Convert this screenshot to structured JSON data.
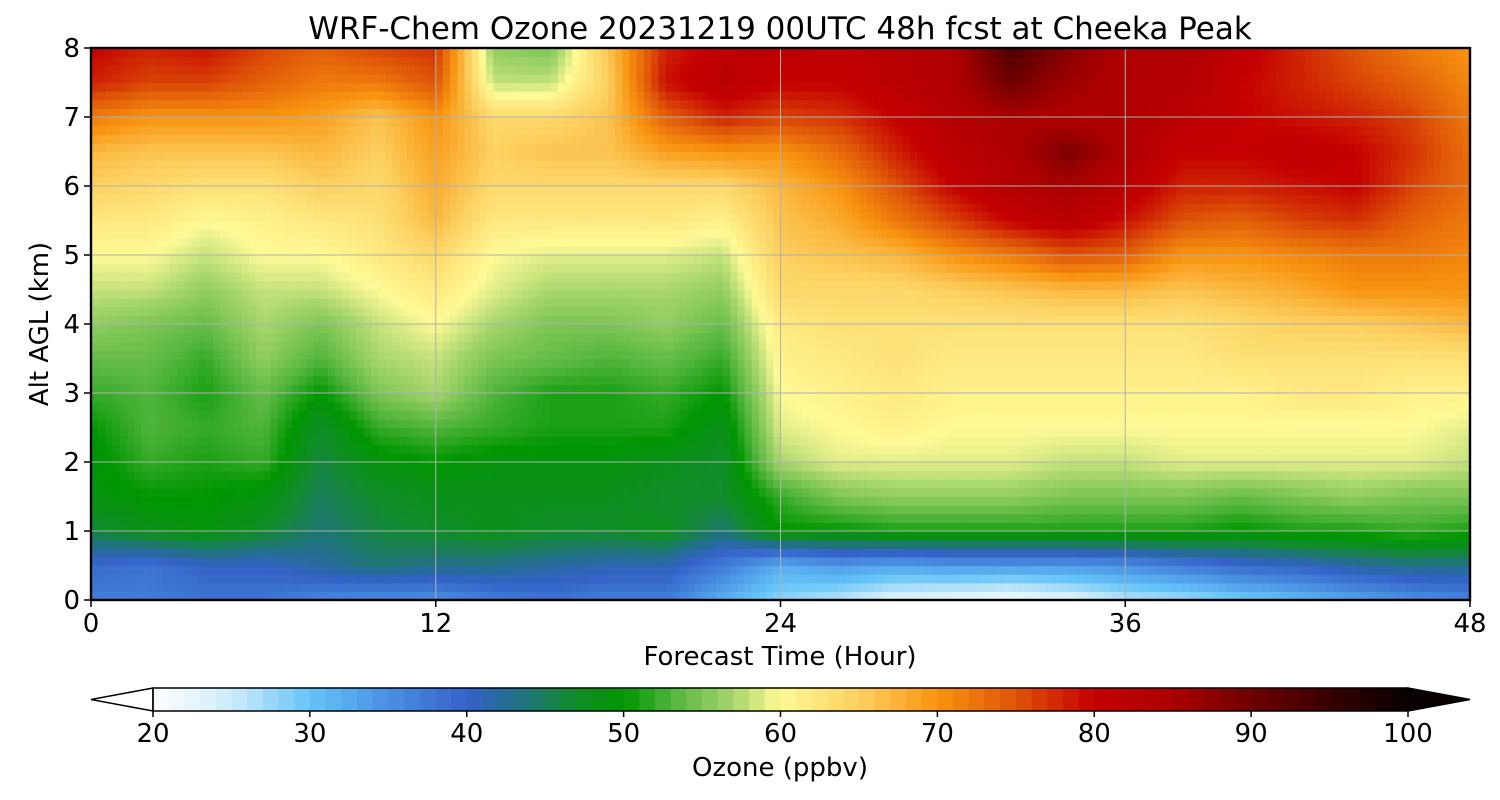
{
  "chart_data": {
    "type": "heatmap",
    "title": "WRF-Chem Ozone  20231219 00UTC 48h fcst at Cheeka Peak",
    "xlabel": "Forecast Time (Hour)",
    "ylabel": "Alt AGL (km)",
    "xlim": [
      0,
      48
    ],
    "ylim": [
      0,
      8
    ],
    "xticks": [
      "0",
      "12",
      "24",
      "36",
      "48"
    ],
    "yticks": [
      "0",
      "1",
      "2",
      "3",
      "4",
      "5",
      "6",
      "7",
      "8"
    ],
    "grid": true,
    "colorbar": {
      "label": "Ozone  (ppbv)",
      "range": [
        20,
        100
      ],
      "ticks": [
        "20",
        "30",
        "40",
        "50",
        "60",
        "70",
        "80",
        "90",
        "100"
      ],
      "extend": "both"
    },
    "x_hours": [
      0,
      2,
      4,
      6,
      8,
      10,
      12,
      14,
      16,
      18,
      20,
      22,
      24,
      26,
      28,
      30,
      32,
      34,
      36,
      38,
      40,
      42,
      44,
      46,
      48
    ],
    "z_km": [
      0,
      0.5,
      1,
      1.5,
      2,
      2.5,
      3,
      3.5,
      4,
      4.5,
      5,
      5.5,
      6,
      6.5,
      7,
      7.5,
      8
    ],
    "values_ppbv": [
      [
        37,
        37,
        38,
        38,
        36,
        35,
        35,
        37,
        38,
        37,
        37,
        32,
        28,
        26,
        23,
        22,
        21,
        23,
        26,
        27,
        29,
        31,
        33,
        35,
        36
      ],
      [
        39,
        38,
        40,
        40,
        42,
        44,
        43,
        43,
        42,
        41,
        41,
        37,
        32,
        34,
        33,
        34,
        34,
        34,
        35,
        37,
        39,
        40,
        42,
        43,
        43
      ],
      [
        46,
        48,
        49,
        47,
        44,
        46,
        47,
        48,
        47,
        47,
        48,
        44,
        50,
        50,
        51,
        51,
        51,
        51,
        51,
        51,
        50,
        51,
        51,
        52,
        51
      ],
      [
        49,
        50,
        50,
        49,
        45,
        47,
        48,
        48,
        48,
        48,
        47,
        47,
        52,
        55,
        56,
        56,
        56,
        55,
        55,
        55,
        54,
        55,
        56,
        55,
        55
      ],
      [
        49,
        52,
        51,
        52,
        46,
        49,
        50,
        49,
        49,
        49,
        48,
        47,
        57,
        59,
        59,
        59,
        59,
        58,
        58,
        59,
        59,
        59,
        59,
        59,
        58
      ],
      [
        50,
        53,
        52,
        53,
        47,
        52,
        53,
        52,
        51,
        51,
        51,
        48,
        59,
        60,
        61,
        60,
        60,
        60,
        60,
        60,
        60,
        60,
        60,
        60,
        59
      ],
      [
        52,
        53,
        51,
        54,
        50,
        55,
        57,
        53,
        51,
        51,
        52,
        50,
        60,
        61,
        62,
        61,
        61,
        61,
        61,
        61,
        61,
        62,
        62,
        61,
        61
      ],
      [
        54,
        54,
        52,
        56,
        53,
        57,
        58,
        55,
        54,
        53,
        54,
        52,
        61,
        62,
        63,
        62,
        62,
        62,
        62,
        62,
        63,
        63,
        63,
        63,
        63
      ],
      [
        56,
        55,
        54,
        57,
        55,
        58,
        60,
        57,
        55,
        55,
        56,
        54,
        62,
        63,
        63,
        63,
        63,
        63,
        63,
        63,
        64,
        65,
        65,
        66,
        67
      ],
      [
        58,
        58,
        56,
        58,
        58,
        60,
        62,
        59,
        57,
        57,
        57,
        56,
        64,
        64,
        64,
        65,
        66,
        67,
        67,
        66,
        67,
        68,
        70,
        70,
        70
      ],
      [
        60,
        60,
        58,
        60,
        60,
        62,
        64,
        60,
        59,
        59,
        59,
        58,
        65,
        66,
        67,
        70,
        72,
        75,
        74,
        70,
        70,
        71,
        72,
        72,
        71
      ],
      [
        62,
        62,
        60,
        61,
        62,
        63,
        67,
        62,
        62,
        62,
        62,
        61,
        66,
        68,
        72,
        76,
        80,
        82,
        79,
        75,
        74,
        76,
        77,
        74,
        72
      ],
      [
        65,
        64,
        63,
        63,
        65,
        64,
        68,
        64,
        64,
        64,
        64,
        64,
        67,
        70,
        75,
        80,
        83,
        85,
        82,
        78,
        78,
        79,
        80,
        76,
        73
      ],
      [
        67,
        66,
        66,
        66,
        67,
        65,
        69,
        65,
        66,
        66,
        69,
        70,
        70,
        73,
        78,
        82,
        84,
        89,
        84,
        80,
        80,
        81,
        80,
        77,
        73
      ],
      [
        72,
        70,
        70,
        70,
        69,
        66,
        70,
        64,
        64,
        66,
        74,
        78,
        76,
        77,
        80,
        83,
        85,
        84,
        84,
        82,
        80,
        79,
        78,
        76,
        72
      ],
      [
        78,
        76,
        76,
        74,
        72,
        72,
        75,
        58,
        58,
        65,
        79,
        82,
        80,
        80,
        82,
        84,
        90,
        86,
        84,
        83,
        80,
        78,
        76,
        74,
        71
      ],
      [
        80,
        78,
        79,
        76,
        74,
        76,
        77,
        56,
        55,
        66,
        78,
        81,
        82,
        81,
        82,
        84,
        93,
        88,
        84,
        84,
        81,
        78,
        75,
        72,
        70
      ]
    ]
  }
}
